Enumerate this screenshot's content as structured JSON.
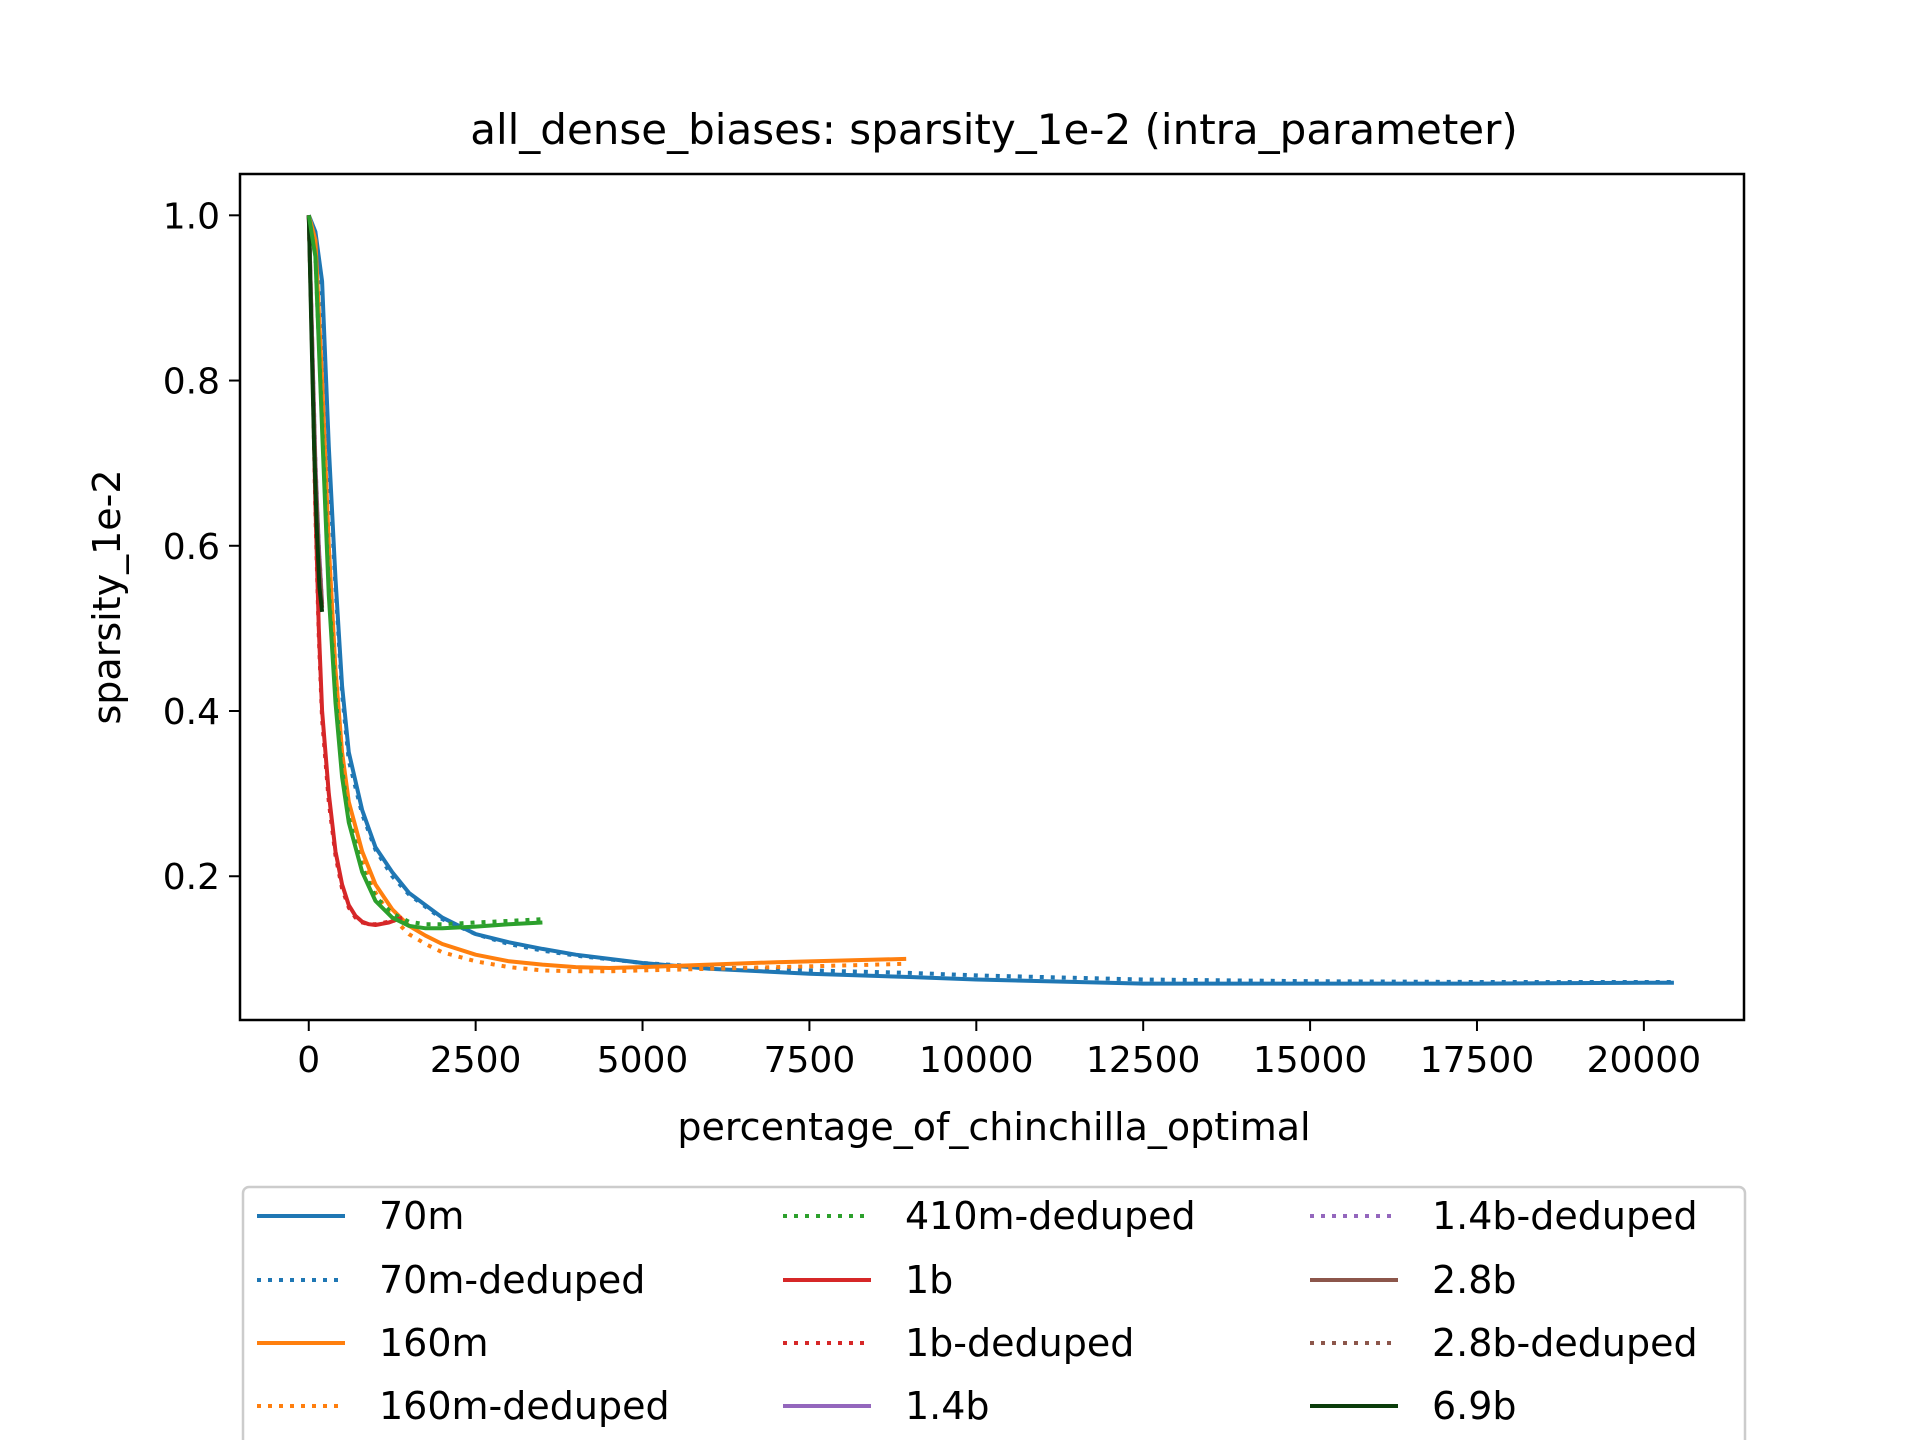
{
  "chart_data": {
    "type": "line",
    "title": "all_dense_biases: sparsity_1e-2 (intra_parameter)",
    "xlabel": "percentage_of_chinchilla_optimal",
    "ylabel": "sparsity_1e-2",
    "xlim": [
      -1030,
      21500
    ],
    "ylim": [
      0.026,
      1.05
    ],
    "xticks": [
      0,
      2500,
      5000,
      7500,
      10000,
      12500,
      15000,
      17500,
      20000
    ],
    "xtick_labels": [
      "0",
      "2500",
      "5000",
      "7500",
      "10000",
      "12500",
      "15000",
      "17500",
      "20000"
    ],
    "yticks": [
      0.2,
      0.4,
      0.6,
      0.8,
      1.0
    ],
    "ytick_labels": [
      "0.2",
      "0.4",
      "0.6",
      "0.8",
      "1.0"
    ],
    "grid": false,
    "legend_position": "below plot, 3 columns",
    "series": [
      {
        "name": "70m",
        "color": "#1f77b4",
        "style": "solid",
        "x": [
          0,
          100,
          200,
          300,
          400,
          500,
          600,
          800,
          1000,
          1250,
          1500,
          2000,
          2500,
          3000,
          3500,
          4000,
          5000,
          6000,
          7500,
          9000,
          10000,
          12500,
          15000,
          17500,
          20000,
          20450
        ],
        "y": [
          1.0,
          0.98,
          0.92,
          0.72,
          0.56,
          0.43,
          0.35,
          0.28,
          0.235,
          0.205,
          0.18,
          0.15,
          0.13,
          0.12,
          0.112,
          0.105,
          0.095,
          0.088,
          0.082,
          0.078,
          0.075,
          0.07,
          0.07,
          0.07,
          0.071,
          0.071
        ]
      },
      {
        "name": "70m-deduped",
        "color": "#1f77b4",
        "style": "dotted",
        "x": [
          0,
          100,
          200,
          300,
          400,
          500,
          600,
          800,
          1000,
          1250,
          1500,
          2000,
          2500,
          3000,
          3500,
          4000,
          5000,
          6000,
          7500,
          9000,
          10000,
          12500,
          15000,
          17500,
          20000,
          20450
        ],
        "y": [
          1.0,
          0.97,
          0.9,
          0.7,
          0.55,
          0.42,
          0.34,
          0.275,
          0.232,
          0.2,
          0.178,
          0.148,
          0.13,
          0.118,
          0.11,
          0.104,
          0.095,
          0.09,
          0.086,
          0.083,
          0.08,
          0.075,
          0.073,
          0.072,
          0.072,
          0.072
        ]
      },
      {
        "name": "160m",
        "color": "#ff7f0e",
        "style": "solid",
        "x": [
          0,
          100,
          200,
          300,
          400,
          500,
          600,
          800,
          1000,
          1250,
          1500,
          1750,
          2000,
          2500,
          3000,
          3500,
          4000,
          4500,
          5000,
          6000,
          7000,
          8000,
          8950
        ],
        "y": [
          1.0,
          0.97,
          0.8,
          0.6,
          0.45,
          0.35,
          0.29,
          0.23,
          0.19,
          0.16,
          0.14,
          0.128,
          0.118,
          0.105,
          0.097,
          0.093,
          0.09,
          0.089,
          0.09,
          0.093,
          0.096,
          0.098,
          0.1
        ]
      },
      {
        "name": "160m-deduped",
        "color": "#ff7f0e",
        "style": "dotted",
        "x": [
          0,
          100,
          200,
          300,
          400,
          500,
          600,
          800,
          1000,
          1250,
          1500,
          1750,
          2000,
          2500,
          3000,
          3500,
          4000,
          4500,
          5000,
          6000,
          7000,
          8000,
          8950
        ],
        "y": [
          1.0,
          0.96,
          0.78,
          0.58,
          0.44,
          0.34,
          0.28,
          0.22,
          0.18,
          0.15,
          0.13,
          0.118,
          0.108,
          0.097,
          0.09,
          0.086,
          0.085,
          0.085,
          0.086,
          0.088,
          0.09,
          0.092,
          0.094
        ]
      },
      {
        "name": "410m-deduped",
        "color": "#2ca02c",
        "style": "dotted",
        "x": [
          0,
          100,
          200,
          300,
          400,
          500,
          600,
          800,
          1000,
          1250,
          1500,
          1750,
          2000,
          2500,
          3000,
          3500
        ],
        "y": [
          1.0,
          0.95,
          0.75,
          0.55,
          0.42,
          0.33,
          0.27,
          0.21,
          0.175,
          0.155,
          0.145,
          0.142,
          0.142,
          0.144,
          0.146,
          0.148
        ]
      },
      {
        "name": "1b",
        "color": "#d62728",
        "style": "solid",
        "x": [
          0,
          50,
          100,
          150,
          200,
          300,
          400,
          500,
          600,
          700,
          800,
          900,
          1000,
          1200,
          1400
        ],
        "y": [
          1.0,
          0.85,
          0.65,
          0.5,
          0.4,
          0.3,
          0.23,
          0.19,
          0.165,
          0.152,
          0.145,
          0.142,
          0.141,
          0.144,
          0.15
        ]
      },
      {
        "name": "1b-deduped",
        "color": "#d62728",
        "style": "dotted",
        "x": [
          0,
          50,
          100,
          150,
          200,
          300,
          400,
          500,
          600,
          700,
          800,
          900,
          1000,
          1200,
          1400
        ],
        "y": [
          1.0,
          0.84,
          0.64,
          0.49,
          0.39,
          0.29,
          0.225,
          0.185,
          0.162,
          0.15,
          0.144,
          0.142,
          0.142,
          0.145,
          0.15
        ]
      },
      {
        "name": "1.4b",
        "color": "#9467bd",
        "style": "solid",
        "x": [
          0,
          50,
          100,
          150,
          200
        ],
        "y": [
          1.0,
          0.85,
          0.7,
          0.6,
          0.53
        ]
      },
      {
        "name": "1.4b-deduped",
        "color": "#9467bd",
        "style": "dotted",
        "x": [
          0,
          50,
          100,
          150,
          200
        ],
        "y": [
          1.0,
          0.85,
          0.7,
          0.6,
          0.53
        ]
      },
      {
        "name": "2.8b",
        "color": "#8c564b",
        "style": "solid",
        "x": [
          0,
          50,
          100,
          150,
          200
        ],
        "y": [
          1.0,
          0.84,
          0.69,
          0.59,
          0.525
        ]
      },
      {
        "name": "2.8b-deduped",
        "color": "#8c564b",
        "style": "dotted",
        "x": [
          0,
          50,
          100,
          150,
          200
        ],
        "y": [
          1.0,
          0.84,
          0.69,
          0.59,
          0.525
        ]
      },
      {
        "name": "6.9b",
        "color": "#0b3d0b",
        "style": "solid",
        "x": [
          0,
          40,
          80,
          120,
          160,
          200
        ],
        "y": [
          1.0,
          0.86,
          0.72,
          0.62,
          0.55,
          0.52
        ]
      },
      {
        "name": "410m",
        "color": "#2ca02c",
        "style": "solid",
        "legend": false,
        "x": [
          0,
          100,
          200,
          300,
          400,
          500,
          600,
          800,
          1000,
          1250,
          1500,
          1750,
          2000,
          2500,
          3000,
          3500
        ],
        "y": [
          1.0,
          0.95,
          0.74,
          0.54,
          0.41,
          0.32,
          0.265,
          0.205,
          0.17,
          0.15,
          0.14,
          0.137,
          0.137,
          0.139,
          0.142,
          0.144
        ]
      }
    ]
  }
}
